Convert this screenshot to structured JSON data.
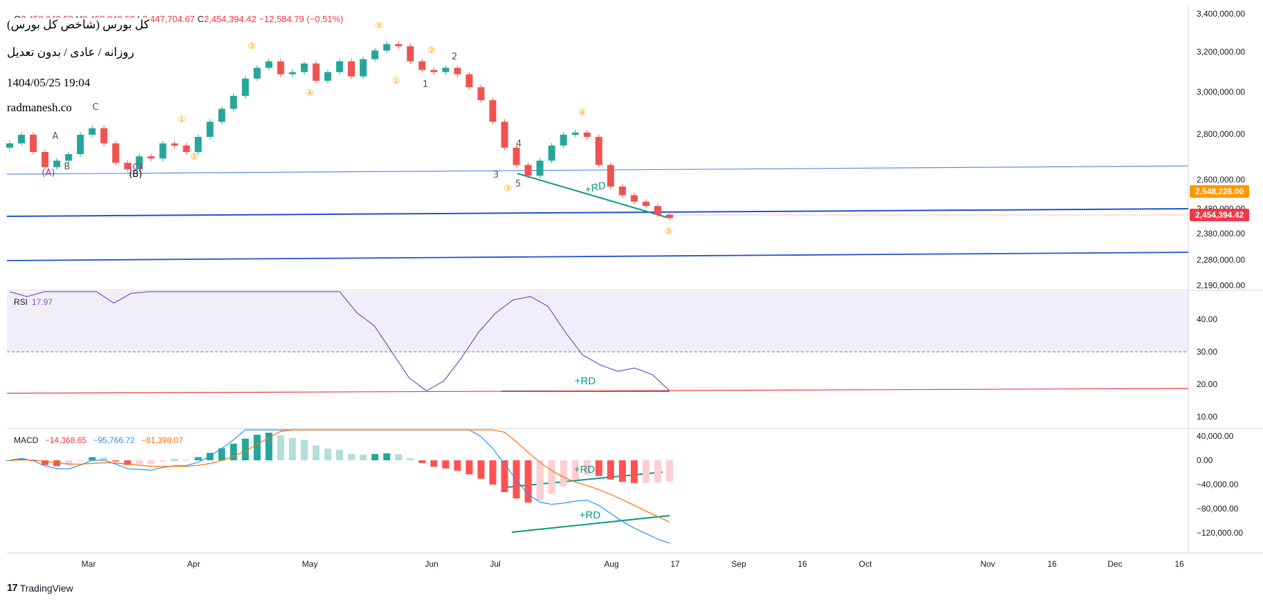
{
  "header": {
    "ohlc_o_label": "O",
    "ohlc_o": "2,459,049.58",
    "ohlc_h_label": "H",
    "ohlc_h": "2,459,049.58",
    "ohlc_l_label": "L",
    "ohlc_l": "2,447,704.67",
    "ohlc_c_label": "C",
    "ohlc_c": "2,454,394.42",
    "change": "−12,584.79 (−0.51%)"
  },
  "info": {
    "title": "کل بورس (شاخص کل بورس)",
    "subtitle": "روزانه / عادی / بدون تعدیل",
    "datetime": "1404/05/25 19:04",
    "site": "radmanesh.co"
  },
  "rsi": {
    "name": "RSI",
    "value": "17.97"
  },
  "macd": {
    "name": "MACD",
    "hist": "−14,368.65",
    "macd": "−95,766.72",
    "signal": "−81,398.07"
  },
  "tags": {
    "price_orange": "2,548,226.00",
    "price_red": "2,454,394.42"
  },
  "brand": {
    "logo": "17",
    "name": "TradingView"
  },
  "colors": {
    "up": "#26a69a",
    "down": "#ef5350",
    "trend": "#2962ff",
    "rsi": "#7e57c2",
    "macd": "#2196f3",
    "signal": "#ff6d00",
    "rd": "#089981"
  },
  "chart_data": [
    {
      "type": "candlestick",
      "title": "کل بورس (شاخص کل بورس)",
      "y_ticks": [
        "3,400,000.00",
        "3,200,000.00",
        "3,000,000.00",
        "2,800,000.00",
        "2,600,000.00",
        "2,480,000.00",
        "2,380,000.00",
        "2,280,000.00",
        "2,190,000.00"
      ],
      "x_ticks": [
        "Mar",
        "Apr",
        "May",
        "Jun",
        "Jul",
        "Aug",
        "17",
        "Sep",
        "16",
        "Oct",
        "Nov",
        "16",
        "Dec",
        "16"
      ],
      "closes_approx": [
        2800000,
        2840000,
        2760000,
        2690000,
        2720000,
        2750000,
        2840000,
        2870000,
        2800000,
        2710000,
        2680000,
        2740000,
        2730000,
        2800000,
        2790000,
        2760000,
        2830000,
        2900000,
        2960000,
        3020000,
        3100000,
        3150000,
        3180000,
        3120000,
        3130000,
        3170000,
        3090000,
        3130000,
        3180000,
        3110000,
        3190000,
        3230000,
        3260000,
        3250000,
        3180000,
        3140000,
        3130000,
        3150000,
        3120000,
        3060000,
        3000000,
        2900000,
        2780000,
        2700000,
        2650000,
        2720000,
        2790000,
        2840000,
        2850000,
        2830000,
        2700000,
        2600000,
        2560000,
        2530000,
        2510000,
        2470000,
        2454394
      ],
      "annotations": [
        "(A)",
        "B",
        "A",
        "C",
        "(B)",
        "(C)",
        "①",
        "②",
        "③",
        "④",
        "⑤",
        "1",
        "2",
        "3",
        "4",
        "5",
        "+RD"
      ]
    },
    {
      "type": "line",
      "title": "RSI",
      "value": 17.97,
      "y_ticks": [
        "40.00",
        "30.00",
        "20.00",
        "10.00"
      ],
      "values_approx": [
        55,
        47,
        50,
        52,
        54,
        49,
        45,
        48,
        52,
        49,
        53,
        56,
        58,
        61,
        63,
        62,
        60,
        58,
        56,
        50,
        42,
        38,
        30,
        22,
        18,
        21,
        28,
        36,
        42,
        46,
        47,
        44,
        36,
        29,
        26,
        24,
        25,
        23,
        18
      ]
    },
    {
      "type": "bar",
      "title": "MACD",
      "series": [
        {
          "name": "MACD",
          "value": -95766.72
        },
        {
          "name": "Signal",
          "value": -81398.07
        },
        {
          "name": "Histogram",
          "value": -14368.65
        }
      ],
      "y_ticks": [
        "40,000.00",
        "0.00",
        "−40,000.00",
        "−80,000.00",
        "−120,000.00"
      ]
    }
  ]
}
